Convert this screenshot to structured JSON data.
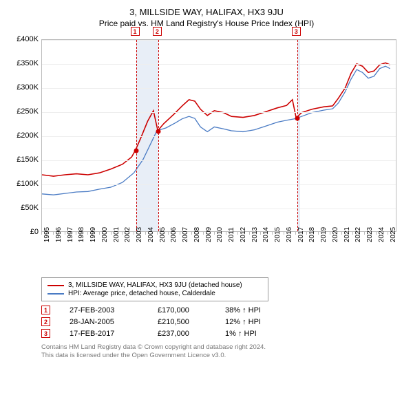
{
  "title": "3, MILLSIDE WAY, HALIFAX, HX3 9JU",
  "subtitle": "Price paid vs. HM Land Registry's House Price Index (HPI)",
  "chart": {
    "type": "line",
    "background_color": "#ffffff",
    "grid_color": "#eeeeee",
    "border_color": "#bbbbbb",
    "shade_color": "#e8eef7",
    "ylim": [
      0,
      400000
    ],
    "ytick_step": 50000,
    "ytick_labels": [
      "£0",
      "£50K",
      "£100K",
      "£150K",
      "£200K",
      "£250K",
      "£300K",
      "£350K",
      "£400K"
    ],
    "xlim": [
      1995,
      2025.8
    ],
    "xtick_years": [
      1995,
      1996,
      1997,
      1998,
      1999,
      2000,
      2001,
      2002,
      2003,
      2004,
      2005,
      2006,
      2007,
      2008,
      2009,
      2010,
      2011,
      2012,
      2013,
      2014,
      2015,
      2016,
      2017,
      2018,
      2019,
      2020,
      2021,
      2022,
      2023,
      2024,
      2025
    ],
    "series": [
      {
        "name": "property",
        "label": "3, MILLSIDE WAY, HALIFAX, HX3 9JU (detached house)",
        "color": "#cc0000",
        "line_width": 1.6,
        "points": [
          [
            1995,
            118000
          ],
          [
            1996,
            115000
          ],
          [
            1997,
            118000
          ],
          [
            1998,
            120000
          ],
          [
            1999,
            118000
          ],
          [
            2000,
            122000
          ],
          [
            2001,
            130000
          ],
          [
            2002,
            140000
          ],
          [
            2002.8,
            155000
          ],
          [
            2003.15,
            170000
          ],
          [
            2003.6,
            195000
          ],
          [
            2004.2,
            230000
          ],
          [
            2004.7,
            252000
          ],
          [
            2005.08,
            210500
          ],
          [
            2005.6,
            225000
          ],
          [
            2006.5,
            245000
          ],
          [
            2007.2,
            262000
          ],
          [
            2007.8,
            275000
          ],
          [
            2008.3,
            272000
          ],
          [
            2008.8,
            255000
          ],
          [
            2009.4,
            242000
          ],
          [
            2010,
            252000
          ],
          [
            2010.8,
            248000
          ],
          [
            2011.5,
            240000
          ],
          [
            2012.5,
            238000
          ],
          [
            2013.5,
            242000
          ],
          [
            2014.5,
            250000
          ],
          [
            2015.5,
            258000
          ],
          [
            2016.3,
            263000
          ],
          [
            2016.8,
            275000
          ],
          [
            2017.13,
            237000
          ],
          [
            2017.6,
            248000
          ],
          [
            2018.5,
            255000
          ],
          [
            2019.5,
            260000
          ],
          [
            2020.3,
            262000
          ],
          [
            2020.8,
            278000
          ],
          [
            2021.4,
            300000
          ],
          [
            2021.9,
            330000
          ],
          [
            2022.4,
            350000
          ],
          [
            2022.9,
            345000
          ],
          [
            2023.4,
            332000
          ],
          [
            2023.9,
            335000
          ],
          [
            2024.4,
            348000
          ],
          [
            2024.9,
            352000
          ],
          [
            2025.3,
            348000
          ]
        ]
      },
      {
        "name": "hpi",
        "label": "HPI: Average price, detached house, Calderdale",
        "color": "#4a7bc4",
        "line_width": 1.3,
        "points": [
          [
            1995,
            78000
          ],
          [
            1996,
            76000
          ],
          [
            1997,
            79000
          ],
          [
            1998,
            82000
          ],
          [
            1999,
            83000
          ],
          [
            2000,
            88000
          ],
          [
            2001,
            92000
          ],
          [
            2002,
            102000
          ],
          [
            2003,
            122000
          ],
          [
            2003.8,
            150000
          ],
          [
            2004.5,
            185000
          ],
          [
            2005,
            210000
          ],
          [
            2005.8,
            216000
          ],
          [
            2006.5,
            225000
          ],
          [
            2007.2,
            235000
          ],
          [
            2007.8,
            240000
          ],
          [
            2008.3,
            236000
          ],
          [
            2008.8,
            218000
          ],
          [
            2009.4,
            208000
          ],
          [
            2010,
            218000
          ],
          [
            2010.8,
            214000
          ],
          [
            2011.5,
            210000
          ],
          [
            2012.5,
            208000
          ],
          [
            2013.5,
            212000
          ],
          [
            2014.5,
            220000
          ],
          [
            2015.5,
            228000
          ],
          [
            2016.3,
            232000
          ],
          [
            2017,
            235000
          ],
          [
            2017.6,
            240000
          ],
          [
            2018.5,
            248000
          ],
          [
            2019.5,
            253000
          ],
          [
            2020.3,
            256000
          ],
          [
            2020.8,
            268000
          ],
          [
            2021.4,
            292000
          ],
          [
            2021.9,
            318000
          ],
          [
            2022.4,
            338000
          ],
          [
            2022.9,
            332000
          ],
          [
            2023.4,
            320000
          ],
          [
            2023.9,
            324000
          ],
          [
            2024.4,
            340000
          ],
          [
            2024.9,
            345000
          ],
          [
            2025.3,
            340000
          ]
        ]
      }
    ],
    "shaded_ranges": [
      [
        2003.15,
        2005.08
      ],
      [
        2017.13,
        2017.4
      ]
    ],
    "transactions": [
      {
        "n": "1",
        "x": 2003.15,
        "date": "27-FEB-2003",
        "price": 170000,
        "price_label": "£170,000",
        "diff": "38% ↑ HPI"
      },
      {
        "n": "2",
        "x": 2005.08,
        "date": "28-JAN-2005",
        "price": 210500,
        "price_label": "£210,500",
        "diff": "12% ↑ HPI"
      },
      {
        "n": "3",
        "x": 2017.13,
        "date": "17-FEB-2017",
        "price": 237000,
        "price_label": "£237,000",
        "diff": "1% ↑ HPI"
      }
    ]
  },
  "legend": {
    "border_color": "#999999"
  },
  "footer": {
    "line1": "Contains HM Land Registry data © Crown copyright and database right 2024.",
    "line2": "This data is licensed under the Open Government Licence v3.0."
  },
  "colors": {
    "marker_border": "#cc0000",
    "footer_text": "#777777"
  },
  "fonts": {
    "title_size": 13,
    "subtitle_size": 12,
    "axis_size": 11,
    "legend_size": 10,
    "footer_size": 9.5
  }
}
